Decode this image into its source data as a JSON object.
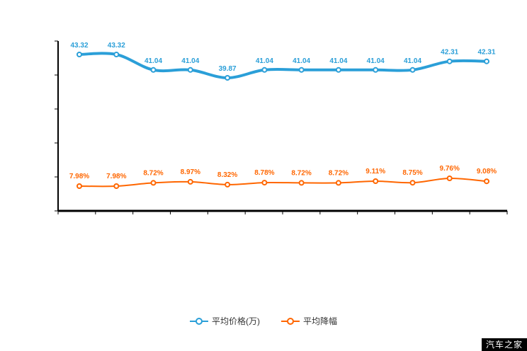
{
  "chart_data": {
    "type": "line",
    "title": "",
    "categories": [
      "",
      "",
      "",
      "",
      "",
      "",
      "",
      "",
      "",
      "",
      "",
      ""
    ],
    "x_axis_labels_visible": false,
    "grid": false,
    "legend_position": "bottom",
    "axis_color": "#000000",
    "background_color": "#ffffff",
    "series": [
      {
        "name": "平均价格(万)",
        "color": "#2b9fd8",
        "line_width": 4,
        "values": [
          43.32,
          43.32,
          41.04,
          41.04,
          39.87,
          41.04,
          41.04,
          41.04,
          41.04,
          41.04,
          42.31,
          42.31
        ],
        "labels": [
          "43.32",
          "43.32",
          "41.04",
          "41.04",
          "39.87",
          "41.04",
          "41.04",
          "41.04",
          "41.04",
          "41.04",
          "42.31",
          "42.31"
        ]
      },
      {
        "name": "平均降幅",
        "color": "#ff6600",
        "line_width": 2,
        "values": [
          7.98,
          7.98,
          8.72,
          8.97,
          8.32,
          8.78,
          8.72,
          8.72,
          9.11,
          8.75,
          9.76,
          9.08
        ],
        "labels": [
          "7.98%",
          "7.98%",
          "8.72%",
          "8.97%",
          "8.32%",
          "8.78%",
          "8.72%",
          "8.72%",
          "9.11%",
          "8.75%",
          "9.76%",
          "9.08%"
        ]
      }
    ]
  },
  "legend": {
    "items": [
      {
        "label": "平均价格(万)",
        "color": "#2b9fd8"
      },
      {
        "label": "平均降幅",
        "color": "#ff6600"
      }
    ]
  },
  "watermark": {
    "text": "汽车之家"
  }
}
